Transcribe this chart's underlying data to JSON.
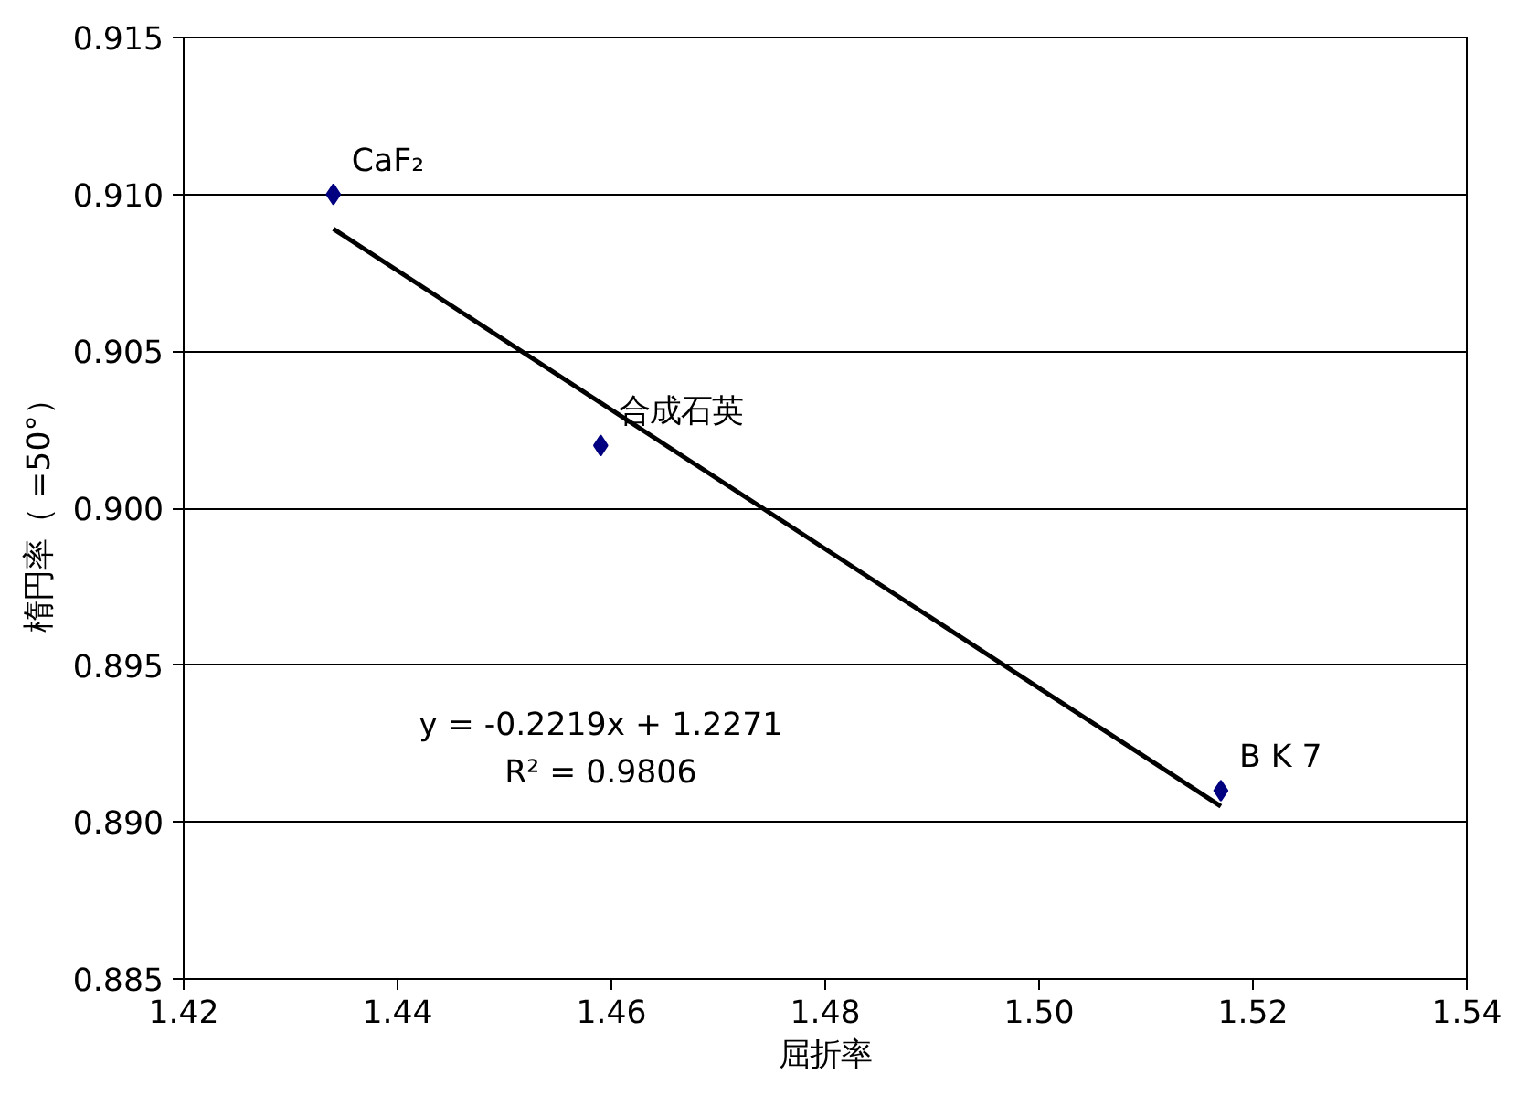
{
  "chart_data": {
    "type": "scatter",
    "xlabel": "屈折率",
    "ylabel": "楕円率（ =50°）",
    "x": [
      1.434,
      1.459,
      1.517
    ],
    "series": [
      {
        "color": "#000080",
        "marker": "diamond",
        "values": [
          0.91,
          0.902,
          0.891
        ]
      },
      {
        "type": "line",
        "color": "#000000",
        "marker": "none",
        "x": [
          1.434,
          1.517
        ],
        "values": [
          0.9089,
          0.8905
        ]
      }
    ],
    "annotations": [
      {
        "text": "CaF₂",
        "x": 1.434,
        "y": 0.91
      },
      {
        "text": "合成石英",
        "x": 1.459,
        "y": 0.902
      },
      {
        "text": "B K 7",
        "x": 1.517,
        "y": 0.891
      },
      "y = -0.2219x + 1.2271",
      "R² = 0.9806"
    ],
    "xlim": [
      1.42,
      1.54
    ],
    "xticks": [
      1.42,
      1.44,
      1.46,
      1.48,
      {
        "value": 1.5,
        "label": "1.50"
      },
      1.52,
      1.54
    ],
    "ylim": [
      0.885,
      0.915
    ],
    "yticks": [
      0.885,
      {
        "value": 0.89,
        "label": "0.890"
      },
      0.895,
      {
        "value": 0.9,
        "label": "0.900"
      },
      0.905,
      {
        "value": 0.91,
        "label": "0.910"
      },
      0.915
    ],
    "grid": "y"
  }
}
